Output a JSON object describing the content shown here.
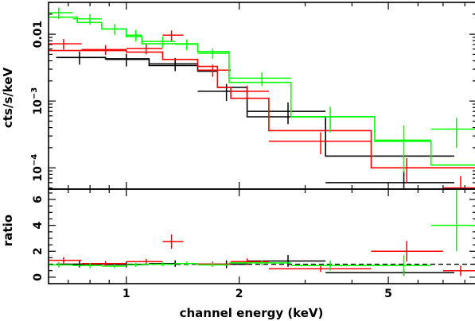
{
  "chart_data": [
    {
      "type": "scatter",
      "panel": "spectrum",
      "ylabel": "cts/s/keV",
      "yscale": "log",
      "xscale": "log",
      "xlim": [
        0.62,
        8.6
      ],
      "ylim": [
        4.8e-05,
        0.03
      ],
      "ytick_labels": [
        {
          "value": 0.01,
          "text": "0.01"
        },
        {
          "value": 0.001,
          "base": "10",
          "exp": "−3"
        },
        {
          "value": 0.0001,
          "base": "10",
          "exp": "−4"
        }
      ],
      "series": [
        {
          "color": "#000000",
          "points": [
            {
              "x": 0.75,
              "xlo": 0.65,
              "xhi": 0.88,
              "y": 0.0045,
              "ylo": 0.0035,
              "yhi": 0.0055
            },
            {
              "x": 1.0,
              "xlo": 0.88,
              "xhi": 1.15,
              "y": 0.0042,
              "ylo": 0.0033,
              "yhi": 0.0051
            },
            {
              "x": 1.35,
              "xlo": 1.15,
              "xhi": 1.55,
              "y": 0.0036,
              "ylo": 0.0028,
              "yhi": 0.0044
            },
            {
              "x": 1.85,
              "xlo": 1.55,
              "xhi": 2.1,
              "y": 0.0014,
              "ylo": 0.001,
              "yhi": 0.0018
            },
            {
              "x": 2.7,
              "xlo": 2.1,
              "xhi": 3.4,
              "y": 0.0007,
              "ylo": 0.00045,
              "yhi": 0.00095
            },
            {
              "x": 5.5,
              "xlo": 3.4,
              "xhi": 7.5,
              "y": 6e-05,
              "ylo": 3e-05,
              "yhi": 9e-05
            }
          ],
          "model": [
            [
              0.65,
              0.0045
            ],
            [
              0.88,
              0.0045
            ],
            [
              0.88,
              0.0043
            ],
            [
              1.15,
              0.0043
            ],
            [
              1.15,
              0.0034
            ],
            [
              1.55,
              0.0034
            ],
            [
              1.55,
              0.0028
            ],
            [
              1.75,
              0.0028
            ],
            [
              1.75,
              0.0016
            ],
            [
              2.1,
              0.0016
            ],
            [
              2.1,
              0.00058
            ],
            [
              3.4,
              0.00058
            ],
            [
              3.4,
              0.00015
            ],
            [
              7.5,
              0.00015
            ]
          ]
        },
        {
          "color": "#ff0000",
          "points": [
            {
              "x": 0.68,
              "xlo": 0.62,
              "xhi": 0.76,
              "y": 0.0072,
              "ylo": 0.0059,
              "yhi": 0.0085
            },
            {
              "x": 0.88,
              "xlo": 0.76,
              "xhi": 1.0,
              "y": 0.0059,
              "ylo": 0.0049,
              "yhi": 0.0069
            },
            {
              "x": 1.13,
              "xlo": 1.0,
              "xhi": 1.25,
              "y": 0.0061,
              "ylo": 0.005,
              "yhi": 0.0072
            },
            {
              "x": 1.32,
              "xlo": 1.25,
              "xhi": 1.42,
              "y": 0.0097,
              "ylo": 0.008,
              "yhi": 0.0114
            },
            {
              "x": 1.7,
              "xlo": 1.55,
              "xhi": 1.9,
              "y": 0.0029,
              "ylo": 0.0023,
              "yhi": 0.0035
            },
            {
              "x": 2.1,
              "xlo": 1.9,
              "xhi": 2.4,
              "y": 0.0014,
              "ylo": 0.0011,
              "yhi": 0.0017
            },
            {
              "x": 3.3,
              "xlo": 2.4,
              "xhi": 4.5,
              "y": 0.00025,
              "ylo": 0.00016,
              "yhi": 0.00034
            },
            {
              "x": 5.6,
              "xlo": 4.5,
              "xhi": 7.0,
              "y": 0.0001,
              "ylo": 6e-05,
              "yhi": 0.00014
            },
            {
              "x": 7.8,
              "xlo": 7.0,
              "xhi": 8.6,
              "y": 5e-05,
              "ylo": 2.5e-05,
              "yhi": 7.5e-05
            }
          ],
          "model": [
            [
              0.62,
              0.0057
            ],
            [
              1.0,
              0.0057
            ],
            [
              1.0,
              0.0054
            ],
            [
              1.25,
              0.0054
            ],
            [
              1.25,
              0.0042
            ],
            [
              1.55,
              0.0042
            ],
            [
              1.55,
              0.0033
            ],
            [
              1.75,
              0.0033
            ],
            [
              1.75,
              0.0016
            ],
            [
              1.9,
              0.0016
            ],
            [
              1.9,
              0.0011
            ],
            [
              2.4,
              0.0011
            ],
            [
              2.4,
              0.00036
            ],
            [
              4.5,
              0.00036
            ],
            [
              4.5,
              0.0001
            ],
            [
              8.6,
              0.0001
            ]
          ]
        },
        {
          "color": "#00ff00",
          "points": [
            {
              "x": 0.66,
              "xlo": 0.62,
              "xhi": 0.72,
              "y": 0.021,
              "ylo": 0.017,
              "yhi": 0.025
            },
            {
              "x": 0.8,
              "xlo": 0.72,
              "xhi": 0.86,
              "y": 0.017,
              "ylo": 0.014,
              "yhi": 0.02
            },
            {
              "x": 0.93,
              "xlo": 0.86,
              "xhi": 1.0,
              "y": 0.012,
              "ylo": 0.0098,
              "yhi": 0.0142
            },
            {
              "x": 1.06,
              "xlo": 1.0,
              "xhi": 1.1,
              "y": 0.0097,
              "ylo": 0.0078,
              "yhi": 0.0116
            },
            {
              "x": 1.25,
              "xlo": 1.1,
              "xhi": 1.35,
              "y": 0.0078,
              "ylo": 0.0063,
              "yhi": 0.0093
            },
            {
              "x": 1.45,
              "xlo": 1.35,
              "xhi": 1.55,
              "y": 0.0071,
              "ylo": 0.0058,
              "yhi": 0.0084
            },
            {
              "x": 1.7,
              "xlo": 1.55,
              "xhi": 1.88,
              "y": 0.0052,
              "ylo": 0.0043,
              "yhi": 0.0061
            },
            {
              "x": 2.3,
              "xlo": 1.88,
              "xhi": 2.75,
              "y": 0.0022,
              "ylo": 0.0017,
              "yhi": 0.0027
            },
            {
              "x": 3.5,
              "xlo": 2.75,
              "xhi": 4.6,
              "y": 0.00058,
              "ylo": 0.00034,
              "yhi": 0.00082
            },
            {
              "x": 5.5,
              "xlo": 4.6,
              "xhi": 6.5,
              "y": 0.00026,
              "ylo": 8.5e-05,
              "yhi": 0.00043
            },
            {
              "x": 7.6,
              "xlo": 6.5,
              "xhi": 8.6,
              "y": 0.00038,
              "ylo": 0.0002,
              "yhi": 0.00056
            }
          ],
          "model": [
            [
              0.62,
              0.018
            ],
            [
              0.74,
              0.018
            ],
            [
              0.74,
              0.015
            ],
            [
              0.86,
              0.015
            ],
            [
              0.86,
              0.012
            ],
            [
              1.0,
              0.012
            ],
            [
              1.0,
              0.0092
            ],
            [
              1.1,
              0.0092
            ],
            [
              1.1,
              0.0072
            ],
            [
              1.55,
              0.0072
            ],
            [
              1.55,
              0.0055
            ],
            [
              1.88,
              0.0055
            ],
            [
              1.88,
              0.0019
            ],
            [
              2.75,
              0.0019
            ],
            [
              2.75,
              0.00058
            ],
            [
              4.6,
              0.00058
            ],
            [
              4.6,
              0.00025
            ],
            [
              6.5,
              0.00025
            ],
            [
              6.5,
              0.00011
            ],
            [
              8.6,
              0.00011
            ]
          ]
        }
      ]
    },
    {
      "type": "scatter",
      "panel": "ratio",
      "xlabel": "channel energy (keV)",
      "ylabel": "ratio",
      "xscale": "log",
      "xlim": [
        0.62,
        8.6
      ],
      "ylim": [
        -0.5,
        6.8
      ],
      "yticks": [
        0,
        2,
        4,
        6
      ],
      "xtick_labels": [
        {
          "value": 1,
          "text": "1"
        },
        {
          "value": 2,
          "text": "2"
        },
        {
          "value": 5,
          "text": "5"
        }
      ],
      "reference_line": 1,
      "series": [
        {
          "color": "#000000",
          "points": [
            {
              "x": 0.75,
              "xlo": 0.65,
              "xhi": 0.88,
              "y": 1.0,
              "ylo": 0.75,
              "yhi": 1.25
            },
            {
              "x": 1.0,
              "xlo": 0.88,
              "xhi": 1.15,
              "y": 0.98,
              "ylo": 0.75,
              "yhi": 1.2
            },
            {
              "x": 1.35,
              "xlo": 1.15,
              "xhi": 1.55,
              "y": 1.05,
              "ylo": 0.8,
              "yhi": 1.3
            },
            {
              "x": 1.85,
              "xlo": 1.55,
              "xhi": 2.1,
              "y": 1.0,
              "ylo": 0.7,
              "yhi": 1.3
            },
            {
              "x": 2.7,
              "xlo": 2.1,
              "xhi": 3.4,
              "y": 1.25,
              "ylo": 0.8,
              "yhi": 1.7
            },
            {
              "x": 5.5,
              "xlo": 3.4,
              "xhi": 7.5,
              "y": 0.35,
              "ylo": 0.1,
              "yhi": 0.6
            }
          ]
        },
        {
          "color": "#ff0000",
          "points": [
            {
              "x": 0.68,
              "xlo": 0.62,
              "xhi": 0.76,
              "y": 1.3,
              "ylo": 1.05,
              "yhi": 1.55
            },
            {
              "x": 0.88,
              "xlo": 0.76,
              "xhi": 1.0,
              "y": 1.05,
              "ylo": 0.85,
              "yhi": 1.25
            },
            {
              "x": 1.13,
              "xlo": 1.0,
              "xhi": 1.25,
              "y": 1.2,
              "ylo": 1.0,
              "yhi": 1.4
            },
            {
              "x": 1.32,
              "xlo": 1.25,
              "xhi": 1.42,
              "y": 2.75,
              "ylo": 2.2,
              "yhi": 3.3
            },
            {
              "x": 1.7,
              "xlo": 1.55,
              "xhi": 1.9,
              "y": 1.0,
              "ylo": 0.8,
              "yhi": 1.2
            },
            {
              "x": 2.1,
              "xlo": 1.9,
              "xhi": 2.4,
              "y": 1.2,
              "ylo": 0.95,
              "yhi": 1.45
            },
            {
              "x": 3.3,
              "xlo": 2.4,
              "xhi": 4.5,
              "y": 0.65,
              "ylo": 0.4,
              "yhi": 0.9
            },
            {
              "x": 5.6,
              "xlo": 4.5,
              "xhi": 7.0,
              "y": 2.0,
              "ylo": 1.2,
              "yhi": 2.8
            },
            {
              "x": 7.8,
              "xlo": 7.0,
              "xhi": 8.6,
              "y": 0.5,
              "ylo": 0.1,
              "yhi": 0.9
            }
          ]
        },
        {
          "color": "#00ff00",
          "points": [
            {
              "x": 0.66,
              "xlo": 0.62,
              "xhi": 0.72,
              "y": 0.95,
              "ylo": 0.75,
              "yhi": 1.15
            },
            {
              "x": 0.8,
              "xlo": 0.72,
              "xhi": 0.86,
              "y": 0.9,
              "ylo": 0.7,
              "yhi": 1.1
            },
            {
              "x": 0.93,
              "xlo": 0.86,
              "xhi": 1.0,
              "y": 0.85,
              "ylo": 0.7,
              "yhi": 1.0
            },
            {
              "x": 1.06,
              "xlo": 1.0,
              "xhi": 1.1,
              "y": 0.95,
              "ylo": 0.8,
              "yhi": 1.1
            },
            {
              "x": 1.25,
              "xlo": 1.1,
              "xhi": 1.35,
              "y": 1.0,
              "ylo": 0.85,
              "yhi": 1.15
            },
            {
              "x": 1.45,
              "xlo": 1.35,
              "xhi": 1.55,
              "y": 1.05,
              "ylo": 0.9,
              "yhi": 1.2
            },
            {
              "x": 1.7,
              "xlo": 1.55,
              "xhi": 1.88,
              "y": 0.95,
              "ylo": 0.8,
              "yhi": 1.1
            },
            {
              "x": 2.3,
              "xlo": 1.88,
              "xhi": 2.75,
              "y": 1.1,
              "ylo": 0.9,
              "yhi": 1.3
            },
            {
              "x": 3.5,
              "xlo": 2.75,
              "xhi": 4.6,
              "y": 0.9,
              "ylo": 0.5,
              "yhi": 1.3
            },
            {
              "x": 5.5,
              "xlo": 4.6,
              "xhi": 6.5,
              "y": 0.9,
              "ylo": 0.1,
              "yhi": 1.7
            },
            {
              "x": 7.6,
              "xlo": 6.5,
              "xhi": 8.6,
              "y": 4.0,
              "ylo": 2.0,
              "yhi": 6.8
            }
          ]
        }
      ]
    }
  ]
}
